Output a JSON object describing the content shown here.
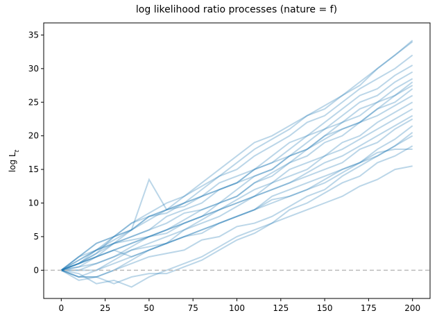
{
  "chart_data": {
    "type": "line",
    "title": "log likelihood ratio processes (nature = f)",
    "ylabel": "log L",
    "ylabel_subscript": "t",
    "x": [
      0,
      10,
      20,
      30,
      40,
      50,
      60,
      70,
      80,
      90,
      100,
      110,
      120,
      130,
      140,
      150,
      160,
      170,
      180,
      190,
      200
    ],
    "series": [
      {
        "color": "#1f77b4",
        "values": [
          0,
          1.5,
          3,
          5,
          7,
          8.5,
          10,
          11,
          13,
          15,
          17,
          19,
          20,
          21.5,
          23,
          24.5,
          26,
          27.5,
          30,
          32,
          34.2
        ]
      },
      {
        "color": "#1f77b4",
        "values": [
          0,
          2,
          3,
          4.5,
          6,
          8,
          9,
          11,
          12.5,
          14,
          16,
          18,
          19.5,
          21,
          23,
          24,
          26,
          28,
          30,
          32,
          34
        ]
      },
      {
        "color": "#1f77b4",
        "values": [
          0,
          1,
          2.5,
          5,
          6,
          7.5,
          9,
          10,
          12,
          14,
          15,
          17,
          18.5,
          20,
          22,
          23,
          25,
          27,
          28.5,
          30,
          32
        ]
      },
      {
        "color": "#1f77b4",
        "values": [
          0,
          2,
          4,
          5,
          6,
          8,
          8.5,
          10,
          11,
          13,
          14,
          15,
          17,
          19,
          20,
          22,
          24,
          26,
          27,
          29,
          30.5
        ]
      },
      {
        "color": "#1f77b4",
        "values": [
          0,
          1,
          3,
          4,
          5,
          6,
          8,
          9,
          10,
          12,
          13,
          15,
          16,
          18,
          20,
          21,
          23,
          25,
          26,
          28,
          29.5
        ]
      },
      {
        "color": "#1f77b4",
        "values": [
          0,
          0.5,
          2,
          4,
          6,
          13.5,
          9,
          9.5,
          11,
          12,
          13,
          14,
          15,
          17,
          19,
          21,
          22,
          24,
          25,
          27,
          28.5
        ]
      },
      {
        "color": "#1f77b4",
        "values": [
          0,
          1,
          2,
          3,
          4,
          5,
          6,
          7.5,
          9,
          10,
          12,
          14,
          15,
          17,
          18,
          20,
          22,
          23,
          25,
          26,
          28
        ]
      },
      {
        "color": "#1f77b4",
        "values": [
          0,
          0,
          1,
          2,
          3.5,
          5,
          6,
          7,
          8,
          10,
          11,
          13,
          14.5,
          16,
          18,
          19.5,
          21,
          22,
          24,
          26,
          27.5
        ]
      },
      {
        "color": "#1f77b4",
        "values": [
          0,
          1,
          2.5,
          4,
          5,
          6,
          7,
          8.5,
          9,
          10,
          11,
          13,
          14,
          16,
          17,
          19,
          20,
          22,
          23,
          24.5,
          26
        ]
      },
      {
        "color": "#1f77b4",
        "values": [
          0,
          -1,
          0,
          1.5,
          3,
          4,
          5,
          6,
          7.5,
          9,
          10.5,
          12,
          13,
          15,
          16,
          17,
          19,
          20,
          22,
          23.5,
          25
        ]
      },
      {
        "color": "#1f77b4",
        "values": [
          0,
          1,
          2,
          3,
          4,
          5,
          5.5,
          7,
          8,
          9,
          10,
          11,
          13,
          14,
          15,
          17,
          18,
          19.5,
          21,
          22.5,
          24
        ]
      },
      {
        "color": "#1f77b4",
        "values": [
          0,
          -1,
          -1,
          0,
          1.5,
          3,
          4,
          6,
          7,
          8,
          9.5,
          11,
          12,
          13,
          14.5,
          16,
          17,
          18.5,
          20,
          21.5,
          23
        ]
      },
      {
        "color": "#1f77b4",
        "values": [
          0,
          1.5,
          3,
          4,
          4.5,
          5,
          6,
          7,
          8,
          9,
          10,
          11,
          12,
          13,
          14,
          15,
          16,
          18,
          19,
          21,
          22.5
        ]
      },
      {
        "color": "#1f77b4",
        "values": [
          0,
          0,
          0,
          1,
          2,
          3,
          4,
          5,
          5.5,
          7,
          8,
          9,
          11,
          12,
          13,
          14,
          15,
          16,
          18,
          19.5,
          21.5
        ]
      },
      {
        "color": "#1f77b4",
        "values": [
          0,
          0.5,
          1,
          2,
          3,
          3.5,
          4,
          5,
          6,
          7,
          8,
          9,
          10.5,
          11,
          12,
          13,
          14.5,
          16,
          17,
          18.5,
          20.5
        ]
      },
      {
        "color": "#1f77b4",
        "values": [
          0,
          -1.5,
          -1,
          0,
          1,
          2,
          2.5,
          3,
          4.5,
          5,
          6.5,
          7,
          8,
          9.5,
          11,
          12,
          14,
          15.5,
          17,
          18.5,
          20
        ]
      },
      {
        "color": "#1f77b4",
        "values": [
          0,
          -0.5,
          -2,
          -1.5,
          -2.5,
          -1,
          0,
          1,
          2,
          3.5,
          5,
          6,
          7,
          9,
          10,
          11.5,
          13,
          14,
          16,
          17,
          18.5
        ]
      },
      {
        "color": "#1f77b4",
        "values": [
          0,
          -1,
          -1,
          -2,
          -1,
          -0.5,
          -0.5,
          0.5,
          1.5,
          3,
          4.5,
          5.5,
          7,
          8,
          9,
          10,
          11,
          12.5,
          13.5,
          15,
          15.5
        ]
      },
      {
        "color": "#1f77b4",
        "values": [
          0,
          1,
          2,
          3,
          2,
          3,
          4,
          5,
          6,
          7,
          8,
          9,
          10,
          11,
          12,
          13.5,
          15,
          16,
          17.5,
          18,
          18
        ]
      },
      {
        "color": "#1f77b4",
        "values": [
          0,
          2,
          4,
          5,
          7,
          8,
          9,
          10,
          11,
          12,
          13,
          15,
          16,
          17,
          18,
          20,
          21,
          22,
          24,
          25,
          27
        ]
      }
    ],
    "line_alpha": 0.3,
    "hline": 0,
    "hline_color": "#bbbbbb",
    "xlim": [
      -10,
      210
    ],
    "ylim": [
      -4.2,
      36.8
    ],
    "xticks": [
      0,
      25,
      50,
      75,
      100,
      125,
      150,
      175,
      200
    ],
    "yticks": [
      0,
      5,
      10,
      15,
      20,
      25,
      30,
      35
    ],
    "grid": false
  }
}
